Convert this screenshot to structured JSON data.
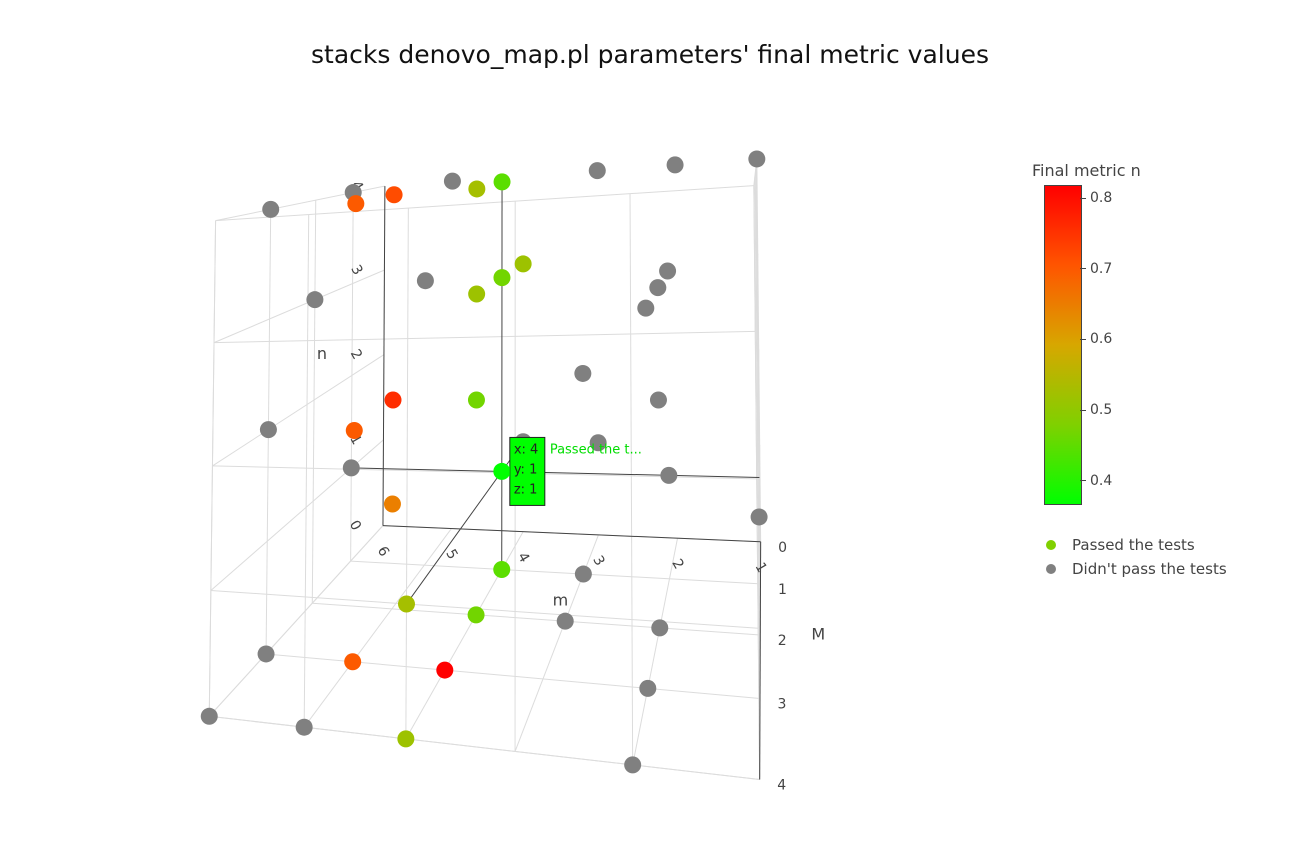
{
  "chart_data": {
    "type": "scatter",
    "title": "stacks denovo_map.pl parameters' final metric values",
    "xlabel": "m",
    "ylabel": "M",
    "zlabel": "n",
    "x_ticks": [
      "6",
      "5",
      "4",
      "3",
      "2",
      "1"
    ],
    "y_ticks": [
      "0",
      "1",
      "2",
      "3",
      "4"
    ],
    "z_ticks": [
      "0",
      "1",
      "2",
      "3",
      "4"
    ],
    "xlim": [
      1,
      6
    ],
    "ylim": [
      0,
      4
    ],
    "zlim": [
      0,
      4
    ],
    "colorbar": {
      "title": "Final  metric n",
      "ticks": [
        "0.4",
        "0.5",
        "0.6",
        "0.7",
        "0.8"
      ],
      "range": [
        0.37,
        0.82
      ],
      "colors": [
        "#00ff00",
        "#80d000",
        "#d7a700",
        "#ff5500",
        "#ff0000"
      ]
    },
    "series": [
      {
        "name": "Passed the tests",
        "color": "#80d000",
        "points": [
          {
            "x": 4,
            "y": 1,
            "z": 4,
            "v": 0.45
          },
          {
            "x": 4,
            "y": 2,
            "z": 4,
            "v": 0.53
          },
          {
            "x": 4,
            "y": 1,
            "z": 3,
            "v": 0.47
          },
          {
            "x": 4,
            "y": 0,
            "z": 3,
            "v": 0.52
          },
          {
            "x": 4,
            "y": 2,
            "z": 3,
            "v": 0.52
          },
          {
            "x": 4,
            "y": 2,
            "z": 2,
            "v": 0.47
          },
          {
            "x": 4,
            "y": 1,
            "z": 1,
            "v": 0.37
          },
          {
            "x": 4,
            "y": 1,
            "z": 0,
            "v": 0.45
          },
          {
            "x": 4,
            "y": 2,
            "z": 0,
            "v": 0.47
          },
          {
            "x": 4,
            "y": 3,
            "z": 0,
            "v": 0.82
          },
          {
            "x": 4,
            "y": 4,
            "z": 0,
            "v": 0.52
          },
          {
            "x": 4,
            "y": 4,
            "z": 1,
            "v": 0.53
          },
          {
            "x": 5,
            "y": 3,
            "z": 4,
            "v": 0.7
          },
          {
            "x": 5,
            "y": 2,
            "z": 4,
            "v": 0.72
          },
          {
            "x": 5,
            "y": 2,
            "z": 2,
            "v": 0.76
          },
          {
            "x": 5,
            "y": 3,
            "z": 2,
            "v": 0.7
          },
          {
            "x": 5,
            "y": 2,
            "z": 1,
            "v": 0.65
          },
          {
            "x": 5,
            "y": 3,
            "z": 0,
            "v": 0.7
          }
        ]
      },
      {
        "name": "Didn't pass the tests",
        "color": "#808080",
        "points": [
          {
            "x": 6,
            "y": 3,
            "z": 4
          },
          {
            "x": 6,
            "y": 1,
            "z": 4
          },
          {
            "x": 5,
            "y": 0,
            "z": 4
          },
          {
            "x": 6,
            "y": 2,
            "z": 3
          },
          {
            "x": 5,
            "y": 1,
            "z": 3
          },
          {
            "x": 6,
            "y": 3,
            "z": 2
          },
          {
            "x": 6,
            "y": 1,
            "z": 1
          },
          {
            "x": 6,
            "y": 3,
            "z": 0
          },
          {
            "x": 6,
            "y": 4,
            "z": 0
          },
          {
            "x": 5,
            "y": 4,
            "z": 0
          },
          {
            "x": 4,
            "y": 0,
            "z": 1
          },
          {
            "x": 3,
            "y": 0,
            "z": 4
          },
          {
            "x": 2,
            "y": 0,
            "z": 4
          },
          {
            "x": 1,
            "y": 0,
            "z": 4
          },
          {
            "x": 2,
            "y": 1,
            "z": 3
          },
          {
            "x": 2,
            "y": 2,
            "z": 3
          },
          {
            "x": 2,
            "y": 3,
            "z": 3
          },
          {
            "x": 3,
            "y": 1,
            "z": 2
          },
          {
            "x": 2,
            "y": 2,
            "z": 2
          },
          {
            "x": 3,
            "y": 0,
            "z": 1
          },
          {
            "x": 2,
            "y": 1,
            "z": 1
          },
          {
            "x": 1,
            "y": 2,
            "z": 1
          },
          {
            "x": 3,
            "y": 1,
            "z": 0
          },
          {
            "x": 3,
            "y": 2,
            "z": 0
          },
          {
            "x": 2,
            "y": 2,
            "z": 0
          },
          {
            "x": 2,
            "y": 3,
            "z": 0
          },
          {
            "x": 2,
            "y": 4,
            "z": 0
          }
        ]
      }
    ],
    "hover": {
      "lines": [
        "x: 4",
        "y: 1",
        "z: 1"
      ],
      "label": "Passed the t..."
    },
    "legend_position": "right"
  }
}
